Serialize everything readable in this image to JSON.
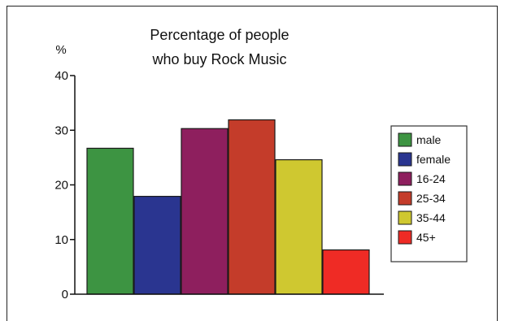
{
  "chart_data": {
    "type": "bar",
    "title": [
      "Percentage of people",
      "who buy Rock Music"
    ],
    "ylabel": "%",
    "xlabel": "",
    "ylim": [
      0,
      40
    ],
    "yticks": [
      "0",
      "10",
      "20",
      "30",
      "40"
    ],
    "categories": [
      "male",
      "female",
      "16-24",
      "25-34",
      "35-44",
      "45+"
    ],
    "values": [
      26.7,
      17.9,
      30.3,
      31.9,
      24.6,
      8.1
    ],
    "colors": [
      "#3d9442",
      "#2a3590",
      "#8e1f5e",
      "#c43c2a",
      "#cfc830",
      "#ef2b25"
    ],
    "legend_position": "right",
    "grid": false
  }
}
